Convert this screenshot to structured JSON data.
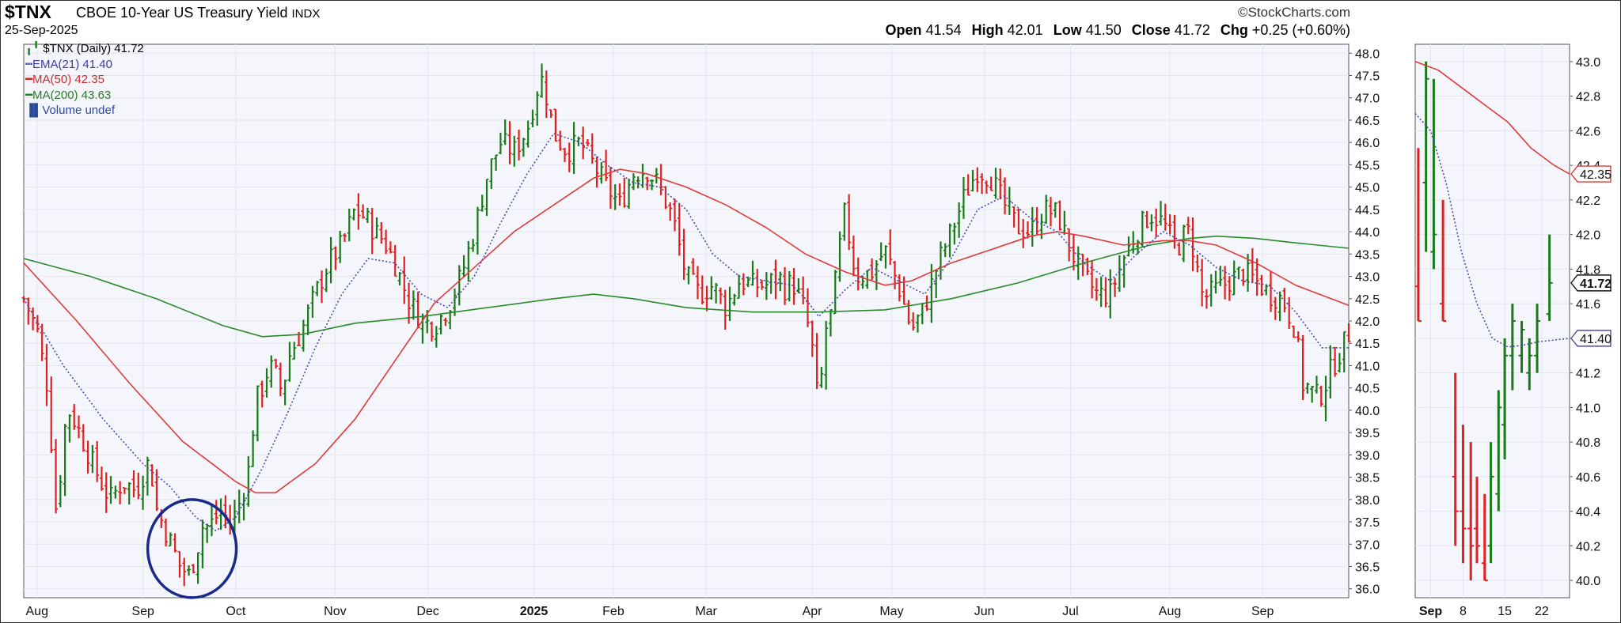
{
  "header": {
    "symbol": "$TNX",
    "name": "CBOE 10-Year US Treasury Yield",
    "exchange": "INDX",
    "date": "25-Sep-2025",
    "brand": "©StockCharts.com",
    "open_label": "Open",
    "open": "41.54",
    "high_label": "High",
    "high": "42.01",
    "low_label": "Low",
    "low": "41.50",
    "close_label": "Close",
    "close": "41.72",
    "chg_label": "Chg",
    "chg": "+0.25 (+0.60%)"
  },
  "legend": {
    "price": "$TNX (Daily) 41.72",
    "ema21": "EMA(21) 41.40",
    "ma50": "MA(50) 42.35",
    "ma200": "MA(200) 43.63",
    "volume": "Volume undef"
  },
  "colors": {
    "up": "#1a7a1a",
    "down": "#e02020",
    "ema": "#4b4bb0",
    "ma50": "#e03a3a",
    "ma200": "#2a8a2a",
    "circle": "#1a2a8a",
    "grid": "#e3e6ee",
    "panel_bg": "#f4f6fb"
  },
  "chart_data": [
    {
      "type": "line",
      "subtype": "ohlc-bars",
      "ylim": [
        35.8,
        48.2
      ],
      "y_ticks": [
        "36.0",
        "36.5",
        "37.0",
        "37.5",
        "38.0",
        "38.5",
        "39.0",
        "39.5",
        "40.0",
        "40.5",
        "41.0",
        "41.5",
        "42.0",
        "42.5",
        "43.0",
        "43.5",
        "44.0",
        "44.5",
        "45.0",
        "45.5",
        "46.0",
        "46.5",
        "47.0",
        "47.5",
        "48.0"
      ],
      "x_ticks": [
        "Aug",
        "Sep",
        "Oct",
        "Nov",
        "Dec",
        "2025",
        "Feb",
        "Mar",
        "Apr",
        "May",
        "Jun",
        "Jul",
        "Aug",
        "Sep"
      ],
      "x_tick_pos": [
        0.01,
        0.09,
        0.16,
        0.235,
        0.305,
        0.385,
        0.445,
        0.515,
        0.595,
        0.655,
        0.725,
        0.79,
        0.865,
        0.935
      ],
      "close_path": [
        [
          0,
          42.5
        ],
        [
          0.01,
          41.8
        ],
        [
          0.018,
          40.5
        ],
        [
          0.025,
          37.5
        ],
        [
          0.03,
          39.5
        ],
        [
          0.035,
          40.0
        ],
        [
          0.045,
          39.3
        ],
        [
          0.055,
          38.6
        ],
        [
          0.065,
          38.0
        ],
        [
          0.075,
          38.4
        ],
        [
          0.085,
          38.2
        ],
        [
          0.095,
          38.9
        ],
        [
          0.1,
          37.8
        ],
        [
          0.11,
          37.1
        ],
        [
          0.118,
          36.5
        ],
        [
          0.125,
          36.3
        ],
        [
          0.13,
          36.8
        ],
        [
          0.135,
          37.4
        ],
        [
          0.14,
          37.4
        ],
        [
          0.145,
          37.6
        ],
        [
          0.15,
          37.8
        ],
        [
          0.155,
          37.4
        ],
        [
          0.16,
          37.7
        ],
        [
          0.165,
          38.1
        ],
        [
          0.17,
          38.7
        ],
        [
          0.175,
          40.2
        ],
        [
          0.18,
          40.5
        ],
        [
          0.185,
          41.0
        ],
        [
          0.19,
          40.8
        ],
        [
          0.195,
          40.4
        ],
        [
          0.2,
          41.2
        ],
        [
          0.21,
          41.8
        ],
        [
          0.22,
          42.6
        ],
        [
          0.23,
          43.3
        ],
        [
          0.24,
          43.7
        ],
        [
          0.25,
          44.5
        ],
        [
          0.258,
          44.3
        ],
        [
          0.265,
          44.0
        ],
        [
          0.272,
          43.8
        ],
        [
          0.28,
          43.3
        ],
        [
          0.29,
          42.5
        ],
        [
          0.3,
          42.0
        ],
        [
          0.31,
          41.9
        ],
        [
          0.32,
          42.3
        ],
        [
          0.33,
          43.0
        ],
        [
          0.34,
          44.0
        ],
        [
          0.35,
          45.3
        ],
        [
          0.36,
          46.0
        ],
        [
          0.37,
          45.8
        ],
        [
          0.38,
          46.3
        ],
        [
          0.39,
          47.5
        ],
        [
          0.395,
          47.0
        ],
        [
          0.4,
          46.2
        ],
        [
          0.41,
          45.8
        ],
        [
          0.42,
          46.0
        ],
        [
          0.43,
          45.5
        ],
        [
          0.44,
          45.0
        ],
        [
          0.45,
          44.6
        ],
        [
          0.46,
          45.3
        ],
        [
          0.47,
          45.4
        ],
        [
          0.48,
          45.0
        ],
        [
          0.49,
          44.3
        ],
        [
          0.5,
          43.0
        ],
        [
          0.51,
          42.6
        ],
        [
          0.52,
          42.8
        ],
        [
          0.53,
          42.3
        ],
        [
          0.54,
          42.9
        ],
        [
          0.55,
          42.8
        ],
        [
          0.56,
          42.8
        ],
        [
          0.57,
          43.0
        ],
        [
          0.575,
          42.7
        ],
        [
          0.58,
          42.9
        ],
        [
          0.59,
          42.2
        ],
        [
          0.595,
          41.4
        ],
        [
          0.6,
          40.0
        ],
        [
          0.605,
          41.8
        ],
        [
          0.61,
          42.2
        ],
        [
          0.615,
          43.5
        ],
        [
          0.62,
          44.5
        ],
        [
          0.625,
          43.4
        ],
        [
          0.63,
          43.0
        ],
        [
          0.64,
          43.1
        ],
        [
          0.65,
          43.6
        ],
        [
          0.66,
          42.8
        ],
        [
          0.67,
          41.8
        ],
        [
          0.68,
          42.3
        ],
        [
          0.69,
          43.3
        ],
        [
          0.7,
          44.0
        ],
        [
          0.71,
          44.8
        ],
        [
          0.72,
          45.4
        ],
        [
          0.73,
          45.2
        ],
        [
          0.74,
          44.6
        ],
        [
          0.75,
          44.1
        ],
        [
          0.76,
          44.0
        ],
        [
          0.77,
          44.5
        ],
        [
          0.78,
          44.4
        ],
        [
          0.79,
          43.6
        ],
        [
          0.8,
          43.0
        ],
        [
          0.81,
          42.6
        ],
        [
          0.82,
          42.6
        ],
        [
          0.83,
          43.4
        ],
        [
          0.84,
          44.0
        ],
        [
          0.85,
          44.4
        ],
        [
          0.86,
          44.2
        ],
        [
          0.87,
          43.6
        ],
        [
          0.875,
          43.9
        ],
        [
          0.88,
          44.0
        ],
        [
          0.89,
          42.5
        ],
        [
          0.9,
          42.7
        ],
        [
          0.91,
          42.9
        ],
        [
          0.92,
          43.1
        ],
        [
          0.93,
          42.9
        ],
        [
          0.94,
          42.6
        ],
        [
          0.95,
          42.5
        ],
        [
          0.96,
          41.8
        ],
        [
          0.965,
          40.6
        ],
        [
          0.97,
          40.5
        ],
        [
          0.975,
          40.3
        ],
        [
          0.98,
          40.4
        ],
        [
          0.985,
          40.8
        ],
        [
          0.99,
          41.1
        ],
        [
          0.995,
          41.4
        ],
        [
          1.0,
          41.72
        ]
      ],
      "ema21": [
        [
          0,
          42.5
        ],
        [
          0.03,
          41.0
        ],
        [
          0.06,
          39.8
        ],
        [
          0.09,
          38.8
        ],
        [
          0.11,
          38.3
        ],
        [
          0.13,
          37.6
        ],
        [
          0.145,
          37.3
        ],
        [
          0.16,
          37.6
        ],
        [
          0.18,
          38.7
        ],
        [
          0.2,
          40.0
        ],
        [
          0.22,
          41.4
        ],
        [
          0.24,
          42.6
        ],
        [
          0.26,
          43.4
        ],
        [
          0.28,
          43.3
        ],
        [
          0.3,
          42.6
        ],
        [
          0.32,
          42.3
        ],
        [
          0.34,
          43.0
        ],
        [
          0.36,
          44.2
        ],
        [
          0.38,
          45.3
        ],
        [
          0.4,
          46.2
        ],
        [
          0.42,
          46.0
        ],
        [
          0.44,
          45.5
        ],
        [
          0.46,
          45.1
        ],
        [
          0.48,
          45.0
        ],
        [
          0.5,
          44.5
        ],
        [
          0.52,
          43.5
        ],
        [
          0.54,
          43.0
        ],
        [
          0.56,
          42.9
        ],
        [
          0.58,
          42.8
        ],
        [
          0.59,
          42.5
        ],
        [
          0.6,
          42.1
        ],
        [
          0.62,
          42.7
        ],
        [
          0.64,
          43.2
        ],
        [
          0.66,
          42.9
        ],
        [
          0.68,
          42.6
        ],
        [
          0.7,
          43.4
        ],
        [
          0.72,
          44.5
        ],
        [
          0.74,
          44.8
        ],
        [
          0.76,
          44.3
        ],
        [
          0.78,
          44.0
        ],
        [
          0.8,
          43.3
        ],
        [
          0.82,
          42.9
        ],
        [
          0.84,
          43.5
        ],
        [
          0.86,
          44.0
        ],
        [
          0.88,
          43.7
        ],
        [
          0.9,
          43.2
        ],
        [
          0.92,
          42.9
        ],
        [
          0.94,
          42.8
        ],
        [
          0.96,
          42.2
        ],
        [
          0.98,
          41.4
        ],
        [
          1.0,
          41.4
        ]
      ],
      "ma50": [
        [
          0,
          43.3
        ],
        [
          0.04,
          42.0
        ],
        [
          0.08,
          40.6
        ],
        [
          0.12,
          39.3
        ],
        [
          0.16,
          38.4
        ],
        [
          0.175,
          38.15
        ],
        [
          0.19,
          38.15
        ],
        [
          0.22,
          38.8
        ],
        [
          0.25,
          39.8
        ],
        [
          0.28,
          41.1
        ],
        [
          0.31,
          42.4
        ],
        [
          0.34,
          43.2
        ],
        [
          0.37,
          44.0
        ],
        [
          0.4,
          44.6
        ],
        [
          0.43,
          45.2
        ],
        [
          0.45,
          45.4
        ],
        [
          0.47,
          45.3
        ],
        [
          0.5,
          45.0
        ],
        [
          0.53,
          44.6
        ],
        [
          0.56,
          44.1
        ],
        [
          0.59,
          43.5
        ],
        [
          0.62,
          43.1
        ],
        [
          0.65,
          42.8
        ],
        [
          0.67,
          42.9
        ],
        [
          0.7,
          43.3
        ],
        [
          0.73,
          43.6
        ],
        [
          0.76,
          43.9
        ],
        [
          0.78,
          44.0
        ],
        [
          0.8,
          43.9
        ],
        [
          0.83,
          43.7
        ],
        [
          0.86,
          43.8
        ],
        [
          0.88,
          43.8
        ],
        [
          0.9,
          43.7
        ],
        [
          0.93,
          43.3
        ],
        [
          0.96,
          42.8
        ],
        [
          1.0,
          42.35
        ]
      ],
      "ma200": [
        [
          0,
          43.4
        ],
        [
          0.05,
          43.0
        ],
        [
          0.1,
          42.5
        ],
        [
          0.15,
          41.9
        ],
        [
          0.18,
          41.65
        ],
        [
          0.21,
          41.7
        ],
        [
          0.25,
          41.95
        ],
        [
          0.3,
          42.1
        ],
        [
          0.35,
          42.3
        ],
        [
          0.4,
          42.5
        ],
        [
          0.43,
          42.6
        ],
        [
          0.46,
          42.5
        ],
        [
          0.5,
          42.3
        ],
        [
          0.55,
          42.2
        ],
        [
          0.6,
          42.2
        ],
        [
          0.65,
          42.25
        ],
        [
          0.7,
          42.5
        ],
        [
          0.75,
          42.85
        ],
        [
          0.8,
          43.3
        ],
        [
          0.85,
          43.7
        ],
        [
          0.88,
          43.85
        ],
        [
          0.9,
          43.9
        ],
        [
          0.93,
          43.85
        ],
        [
          0.96,
          43.75
        ],
        [
          1.0,
          43.63
        ]
      ],
      "current_labels": [
        "42.35",
        "41.72",
        "41.40"
      ]
    },
    {
      "type": "line",
      "subtype": "ohlc-bars-zoom",
      "ylim": [
        39.9,
        43.1
      ],
      "y_ticks": [
        "40.0",
        "40.2",
        "40.4",
        "40.6",
        "40.8",
        "41.0",
        "41.2",
        "41.4",
        "41.6",
        "41.8",
        "42.0",
        "42.2",
        "42.4",
        "42.6",
        "42.8",
        "43.0"
      ],
      "x_ticks": [
        "Sep",
        "8",
        "15",
        "22"
      ],
      "x_tick_pos": [
        0.1,
        0.31,
        0.58,
        0.82
      ],
      "bars": [
        [
          0.02,
          42.5,
          41.5,
          41.7,
          41.5
        ],
        [
          0.07,
          43.0,
          41.9,
          42.3,
          42.9
        ],
        [
          0.12,
          42.9,
          41.8,
          41.9,
          42.0
        ],
        [
          0.18,
          42.2,
          41.5,
          41.6,
          41.5
        ],
        [
          0.26,
          41.2,
          40.2,
          40.6,
          40.4
        ],
        [
          0.31,
          40.9,
          40.1,
          40.4,
          40.3
        ],
        [
          0.36,
          40.8,
          40.0,
          40.3,
          40.2
        ],
        [
          0.4,
          40.6,
          40.1,
          40.3,
          40.2
        ],
        [
          0.45,
          40.5,
          40.0,
          40.1,
          40.0
        ],
        [
          0.49,
          40.8,
          40.1,
          40.2,
          40.6
        ],
        [
          0.54,
          41.1,
          40.4,
          40.5,
          41.0
        ],
        [
          0.58,
          41.4,
          40.7,
          40.9,
          41.3
        ],
        [
          0.63,
          41.6,
          41.1,
          41.3,
          41.5
        ],
        [
          0.69,
          41.5,
          41.2,
          41.3,
          41.45
        ],
        [
          0.74,
          41.4,
          41.1,
          41.2,
          41.3
        ],
        [
          0.79,
          41.6,
          41.2,
          41.3,
          41.5
        ],
        [
          0.87,
          42.0,
          41.5,
          41.54,
          41.72
        ]
      ],
      "ma50": [
        [
          0.0,
          43.0
        ],
        [
          0.15,
          42.95
        ],
        [
          0.3,
          42.85
        ],
        [
          0.45,
          42.75
        ],
        [
          0.6,
          42.65
        ],
        [
          0.75,
          42.5
        ],
        [
          0.9,
          42.4
        ],
        [
          1.0,
          42.35
        ]
      ],
      "ema21": [
        [
          0.0,
          42.7
        ],
        [
          0.1,
          42.6
        ],
        [
          0.2,
          42.3
        ],
        [
          0.3,
          41.9
        ],
        [
          0.4,
          41.6
        ],
        [
          0.5,
          41.4
        ],
        [
          0.6,
          41.35
        ],
        [
          0.7,
          41.36
        ],
        [
          0.8,
          41.38
        ],
        [
          0.9,
          41.39
        ],
        [
          1.0,
          41.4
        ]
      ],
      "current_labels": [
        "42.35",
        "41.72",
        "41.40"
      ]
    }
  ]
}
